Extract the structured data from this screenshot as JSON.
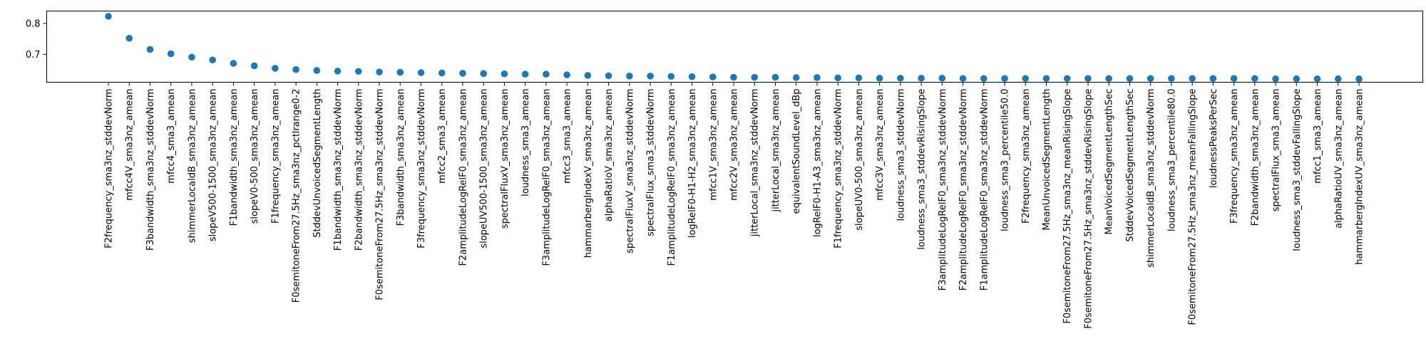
{
  "chart_data": {
    "type": "scatter",
    "title": "",
    "xlabel": "",
    "ylabel": "",
    "ylim": [
      0.61,
      0.84
    ],
    "yticks": [
      0.7,
      0.8
    ],
    "grid": false,
    "legend": "none",
    "marker_color": "#1f77b4",
    "categories": [
      "F2frequency_sma3nz_stddevNorm",
      "mfcc4V_sma3nz_amean",
      "F3bandwidth_sma3nz_stddevNorm",
      "mfcc4_sma3_amean",
      "shimmerLocaldB_sma3nz_amean",
      "slopeV500-1500_sma3nz_amean",
      "F1bandwidth_sma3nz_amean",
      "slopeV0-500_sma3nz_amean",
      "F1frequency_sma3nz_amean",
      "F0semitoneFrom27.5Hz_sma3nz_pctlrange0-2",
      "StddevUnvoicedSegmentLength",
      "F1bandwidth_sma3nz_stddevNorm",
      "F2bandwidth_sma3nz_stddevNorm",
      "F0semitoneFrom27.5Hz_sma3nz_stddevNorm",
      "F3bandwidth_sma3nz_amean",
      "F3frequency_sma3nz_stddevNorm",
      "mfcc2_sma3_amean",
      "F2amplitudeLogRelF0_sma3nz_amean",
      "slopeUV500-1500_sma3nz_amean",
      "spectralFluxV_sma3nz_amean",
      "loudness_sma3_amean",
      "F3amplitudeLogRelF0_sma3nz_amean",
      "mfcc3_sma3_amean",
      "hammarbergIndexV_sma3nz_amean",
      "alphaRatioV_sma3nz_amean",
      "spectralFluxV_sma3nz_stddevNorm",
      "spectralFlux_sma3_stddevNorm",
      "F1amplitudeLogRelF0_sma3nz_amean",
      "logRelF0-H1-H2_sma3nz_amean",
      "mfcc1V_sma3nz_amean",
      "mfcc2V_sma3nz_amean",
      "jitterLocal_sma3nz_stddevNorm",
      "jitterLocal_sma3nz_amean",
      "equivalentSoundLevel_dBp",
      "logRelF0-H1-A3_sma3nz_amean",
      "F1frequency_sma3nz_stddevNorm",
      "slopeUV0-500_sma3nz_amean",
      "mfcc3V_sma3nz_amean",
      "loudness_sma3_stddevNorm",
      "loudness_sma3_stddevRisingSlope",
      "F3amplitudeLogRelF0_sma3nz_stddevNorm",
      "F2amplitudeLogRelF0_sma3nz_stddevNorm",
      "F1amplitudeLogRelF0_sma3nz_stddevNorm",
      "loudness_sma3_percentile50.0",
      "F2frequency_sma3nz_amean",
      "MeanUnvoicedSegmentLength",
      "F0semitoneFrom27.5Hz_sma3nz_meanRisingSlope",
      "F0semitoneFrom27.5Hz_sma3nz_stddevRisingSlope",
      "MeanVoicedSegmentLengthSec",
      "StddevVoicedSegmentLengthSec",
      "shimmerLocaldB_sma3nz_stddevNorm",
      "loudness_sma3_percentile80.0",
      "F0semitoneFrom27.5Hz_sma3nz_meanFallingSlope",
      "loudnessPeaksPerSec",
      "F3frequency_sma3nz_amean",
      "F2bandwidth_sma3nz_amean",
      "spectralFlux_sma3_amean",
      "loudness_sma3_stddevFallingSlope",
      "mfcc1_sma3_amean",
      "alphaRatioUV_sma3nz_amean",
      "hammarbergIndexUV_sma3nz_amean"
    ],
    "values": [
      0.823,
      0.752,
      0.716,
      0.702,
      0.691,
      0.682,
      0.671,
      0.663,
      0.655,
      0.651,
      0.648,
      0.646,
      0.645,
      0.643,
      0.642,
      0.641,
      0.64,
      0.639,
      0.638,
      0.637,
      0.636,
      0.636,
      0.634,
      0.632,
      0.631,
      0.63,
      0.63,
      0.629,
      0.628,
      0.627,
      0.626,
      0.626,
      0.626,
      0.625,
      0.625,
      0.624,
      0.624,
      0.623,
      0.623,
      0.623,
      0.623,
      0.622,
      0.622,
      0.622,
      0.622,
      0.622,
      0.622,
      0.622,
      0.622,
      0.622,
      0.622,
      0.622,
      0.622,
      0.622,
      0.622,
      0.622,
      0.621,
      0.621,
      0.621,
      0.621,
      0.621
    ]
  }
}
